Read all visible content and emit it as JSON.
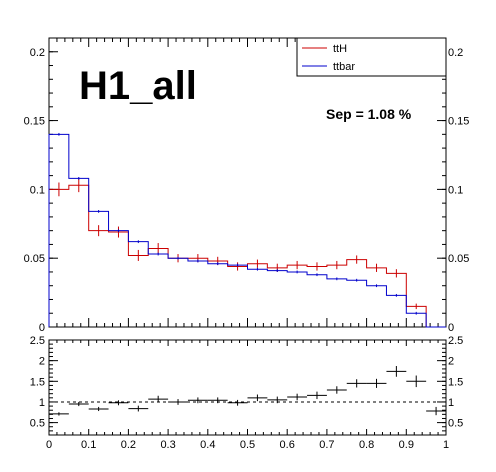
{
  "chart_data": [
    {
      "type": "histogram",
      "title": "H1_all",
      "annotation": "Sep = 1.08 %",
      "xlim": [
        0,
        1
      ],
      "ylim": [
        0,
        0.21
      ],
      "y_ticks": [
        "0",
        "0.05",
        "0.1",
        "0.15",
        "0.2"
      ],
      "y_tick_values": [
        0,
        0.05,
        0.1,
        0.15,
        0.2
      ],
      "bins": 20,
      "legend_position": "top-right",
      "series": [
        {
          "name": "ttH",
          "color": "#cc0000",
          "values": [
            0.1,
            0.103,
            0.07,
            0.069,
            0.052,
            0.057,
            0.05,
            0.05,
            0.048,
            0.044,
            0.046,
            0.043,
            0.045,
            0.044,
            0.045,
            0.049,
            0.043,
            0.039,
            0.015,
            0.0
          ],
          "errors": [
            0.005,
            0.005,
            0.004,
            0.004,
            0.004,
            0.004,
            0.003,
            0.003,
            0.003,
            0.003,
            0.003,
            0.003,
            0.003,
            0.003,
            0.003,
            0.003,
            0.003,
            0.003,
            0.002,
            0
          ]
        },
        {
          "name": "ttbar",
          "color": "#0000cc",
          "values": [
            0.14,
            0.108,
            0.084,
            0.07,
            0.062,
            0.053,
            0.05,
            0.048,
            0.046,
            0.045,
            0.042,
            0.041,
            0.04,
            0.038,
            0.035,
            0.034,
            0.03,
            0.023,
            0.01,
            0.0
          ],
          "errors": [
            0.001,
            0.001,
            0.001,
            0.001,
            0.001,
            0.001,
            0.001,
            0.001,
            0.001,
            0.001,
            0.001,
            0.001,
            0.001,
            0.001,
            0.001,
            0.001,
            0.001,
            0.001,
            0.001,
            0
          ]
        }
      ]
    },
    {
      "type": "ratio",
      "xlim": [
        0,
        1
      ],
      "ylim": [
        0.2,
        2.5
      ],
      "y_ticks": [
        "0.5",
        "1",
        "1.5",
        "2",
        "2.5"
      ],
      "y_tick_values": [
        0.5,
        1,
        1.5,
        2,
        2.5
      ],
      "x_ticks": [
        "0",
        "0.1",
        "0.2",
        "0.3",
        "0.4",
        "0.5",
        "0.6",
        "0.7",
        "0.8",
        "0.9",
        "1"
      ],
      "x_tick_values": [
        0,
        0.1,
        0.2,
        0.3,
        0.4,
        0.5,
        0.6,
        0.7,
        0.8,
        0.9,
        1
      ],
      "reference_line": 1,
      "values": [
        0.71,
        0.95,
        0.83,
        0.98,
        0.84,
        1.07,
        1.0,
        1.04,
        1.04,
        0.98,
        1.1,
        1.05,
        1.12,
        1.16,
        1.29,
        1.45,
        1.45,
        1.74,
        1.5,
        0.78
      ],
      "errors": [
        0.04,
        0.05,
        0.05,
        0.06,
        0.07,
        0.08,
        0.07,
        0.07,
        0.07,
        0.07,
        0.08,
        0.08,
        0.08,
        0.09,
        0.09,
        0.1,
        0.11,
        0.13,
        0.14,
        0.1
      ]
    }
  ]
}
